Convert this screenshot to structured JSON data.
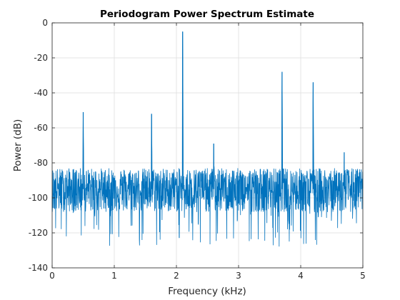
{
  "chart_data": {
    "type": "line",
    "title": "Periodogram Power Spectrum Estimate",
    "xlabel": "Frequency (kHz)",
    "ylabel": "Power (dB)",
    "xlim": [
      0,
      5
    ],
    "ylim": [
      -140,
      0
    ],
    "xticks": [
      "0",
      "1",
      "2",
      "3",
      "4",
      "5"
    ],
    "yticks": [
      "0",
      "-20",
      "-40",
      "-60",
      "-80",
      "-100",
      "-120",
      "-140"
    ],
    "grid": true,
    "line_color": "#0072BD",
    "noise_floor_db": -95,
    "peaks": [
      {
        "x": 0.5,
        "y": -51
      },
      {
        "x": 1.6,
        "y": -52
      },
      {
        "x": 2.1,
        "y": -5
      },
      {
        "x": 2.6,
        "y": -69
      },
      {
        "x": 3.7,
        "y": -28
      },
      {
        "x": 4.2,
        "y": -34
      },
      {
        "x": 4.7,
        "y": -74
      }
    ]
  }
}
